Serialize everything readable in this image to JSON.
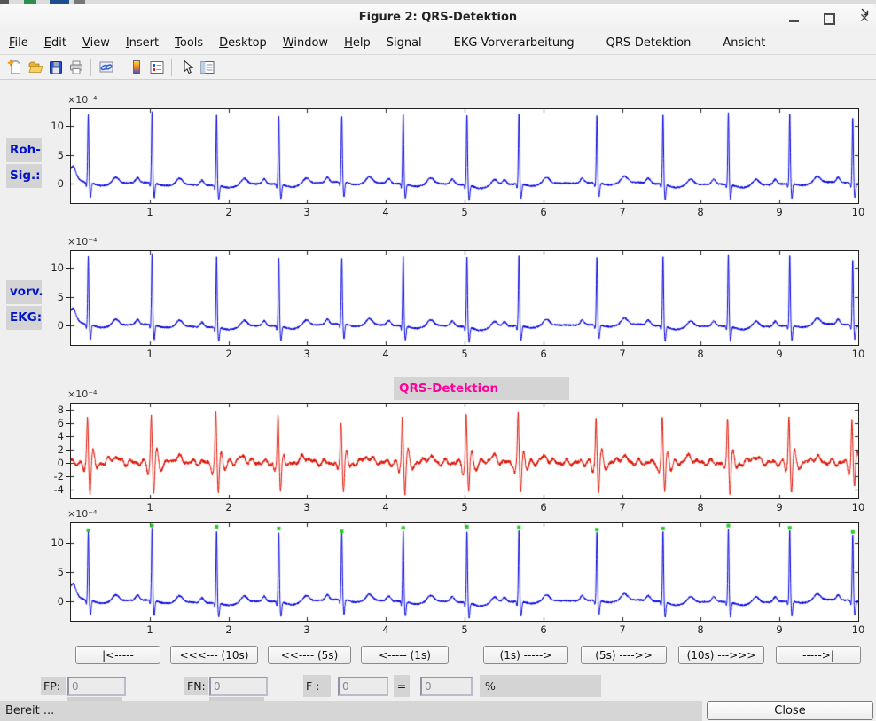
{
  "window": {
    "title": "Figure 2: QRS-Detektion",
    "close_glyph": "✕"
  },
  "menu": {
    "items": [
      {
        "label": "File",
        "u": 0
      },
      {
        "label": "Edit",
        "u": 0
      },
      {
        "label": "View",
        "u": 0
      },
      {
        "label": "Insert",
        "u": 0
      },
      {
        "label": "Tools",
        "u": 0
      },
      {
        "label": "Desktop",
        "u": 0
      },
      {
        "label": "Window",
        "u": 0
      },
      {
        "label": "Help",
        "u": 0
      },
      {
        "label": "Signal",
        "u": -1
      },
      {
        "label": "EKG-Vorverarbeitung",
        "u": -1
      },
      {
        "label": "QRS-Detektion",
        "u": -1
      },
      {
        "label": "Ansicht",
        "u": -1
      }
    ]
  },
  "toolbar": {
    "groups": [
      [
        "new-document",
        "open-folder",
        "save-figure",
        "print"
      ],
      [
        "link-plot"
      ],
      [
        "colorbar",
        "legend"
      ],
      [
        "edit-plot-arrow",
        "property-inspector"
      ]
    ]
  },
  "chart_data": {
    "type": "line",
    "x_range": [
      0,
      10
    ],
    "xticks": [
      1,
      2,
      3,
      4,
      5,
      6,
      7,
      8,
      9,
      10
    ],
    "units_exp": "×10⁻⁴",
    "r_peak_times": [
      0.22,
      1.03,
      1.85,
      2.64,
      3.44,
      4.22,
      5.03,
      5.69,
      6.68,
      7.52,
      8.35,
      9.13,
      9.93
    ],
    "r_peak_heights": [
      11.8,
      12.6,
      12.4,
      12.1,
      11.6,
      12.2,
      12.4,
      12.3,
      11.9,
      12.1,
      12.6,
      12.2,
      11.5
    ],
    "subplots": [
      {
        "id": "roh-signal",
        "kind": "ecg",
        "color": "#0000dd",
        "left_labels": [
          "Roh-",
          "Sig.:"
        ],
        "label_color": "#0011cc",
        "yticks": [
          0,
          5,
          10
        ],
        "ylim": [
          -3.4,
          13.0
        ]
      },
      {
        "id": "vorverarbeitetes-ekg",
        "kind": "ecg",
        "color": "#0000dd",
        "left_labels": [
          "vorv.",
          "EKG:"
        ],
        "label_color": "#0011cc",
        "yticks": [
          0,
          5,
          10
        ],
        "ylim": [
          -3.4,
          13.0
        ]
      },
      {
        "id": "qrs-filter",
        "kind": "filtered",
        "color": "#dd1100",
        "title": "QRS-Detektion",
        "title_color": "#ff0099",
        "yticks": [
          -4,
          -2,
          0,
          2,
          4,
          6,
          8
        ],
        "ylim": [
          -5.4,
          8.9
        ]
      },
      {
        "id": "detektion",
        "kind": "ecg",
        "color": "#0000dd",
        "marker_color": "#22cc22",
        "yticks": [
          0,
          5,
          10
        ],
        "ylim": [
          -3.4,
          13.4
        ]
      }
    ]
  },
  "nav": {
    "buttons": [
      "|<-----",
      "<<<--- (10s)",
      "<<---- (5s)",
      "<----- (1s)",
      "(1s) ----->",
      "(5s) ---->>",
      "(10s) --->>>",
      "----->|"
    ]
  },
  "stats": {
    "fp_label": "FP:",
    "fp_value": "0",
    "fn_label": "FN:",
    "fn_value": "0",
    "f_label": "F :",
    "f_value": "0",
    "equals_label": "=",
    "percent_value": "0",
    "percent_label": "%"
  },
  "statusbar": {
    "text": "Bereit ...",
    "close_label": "Close"
  }
}
